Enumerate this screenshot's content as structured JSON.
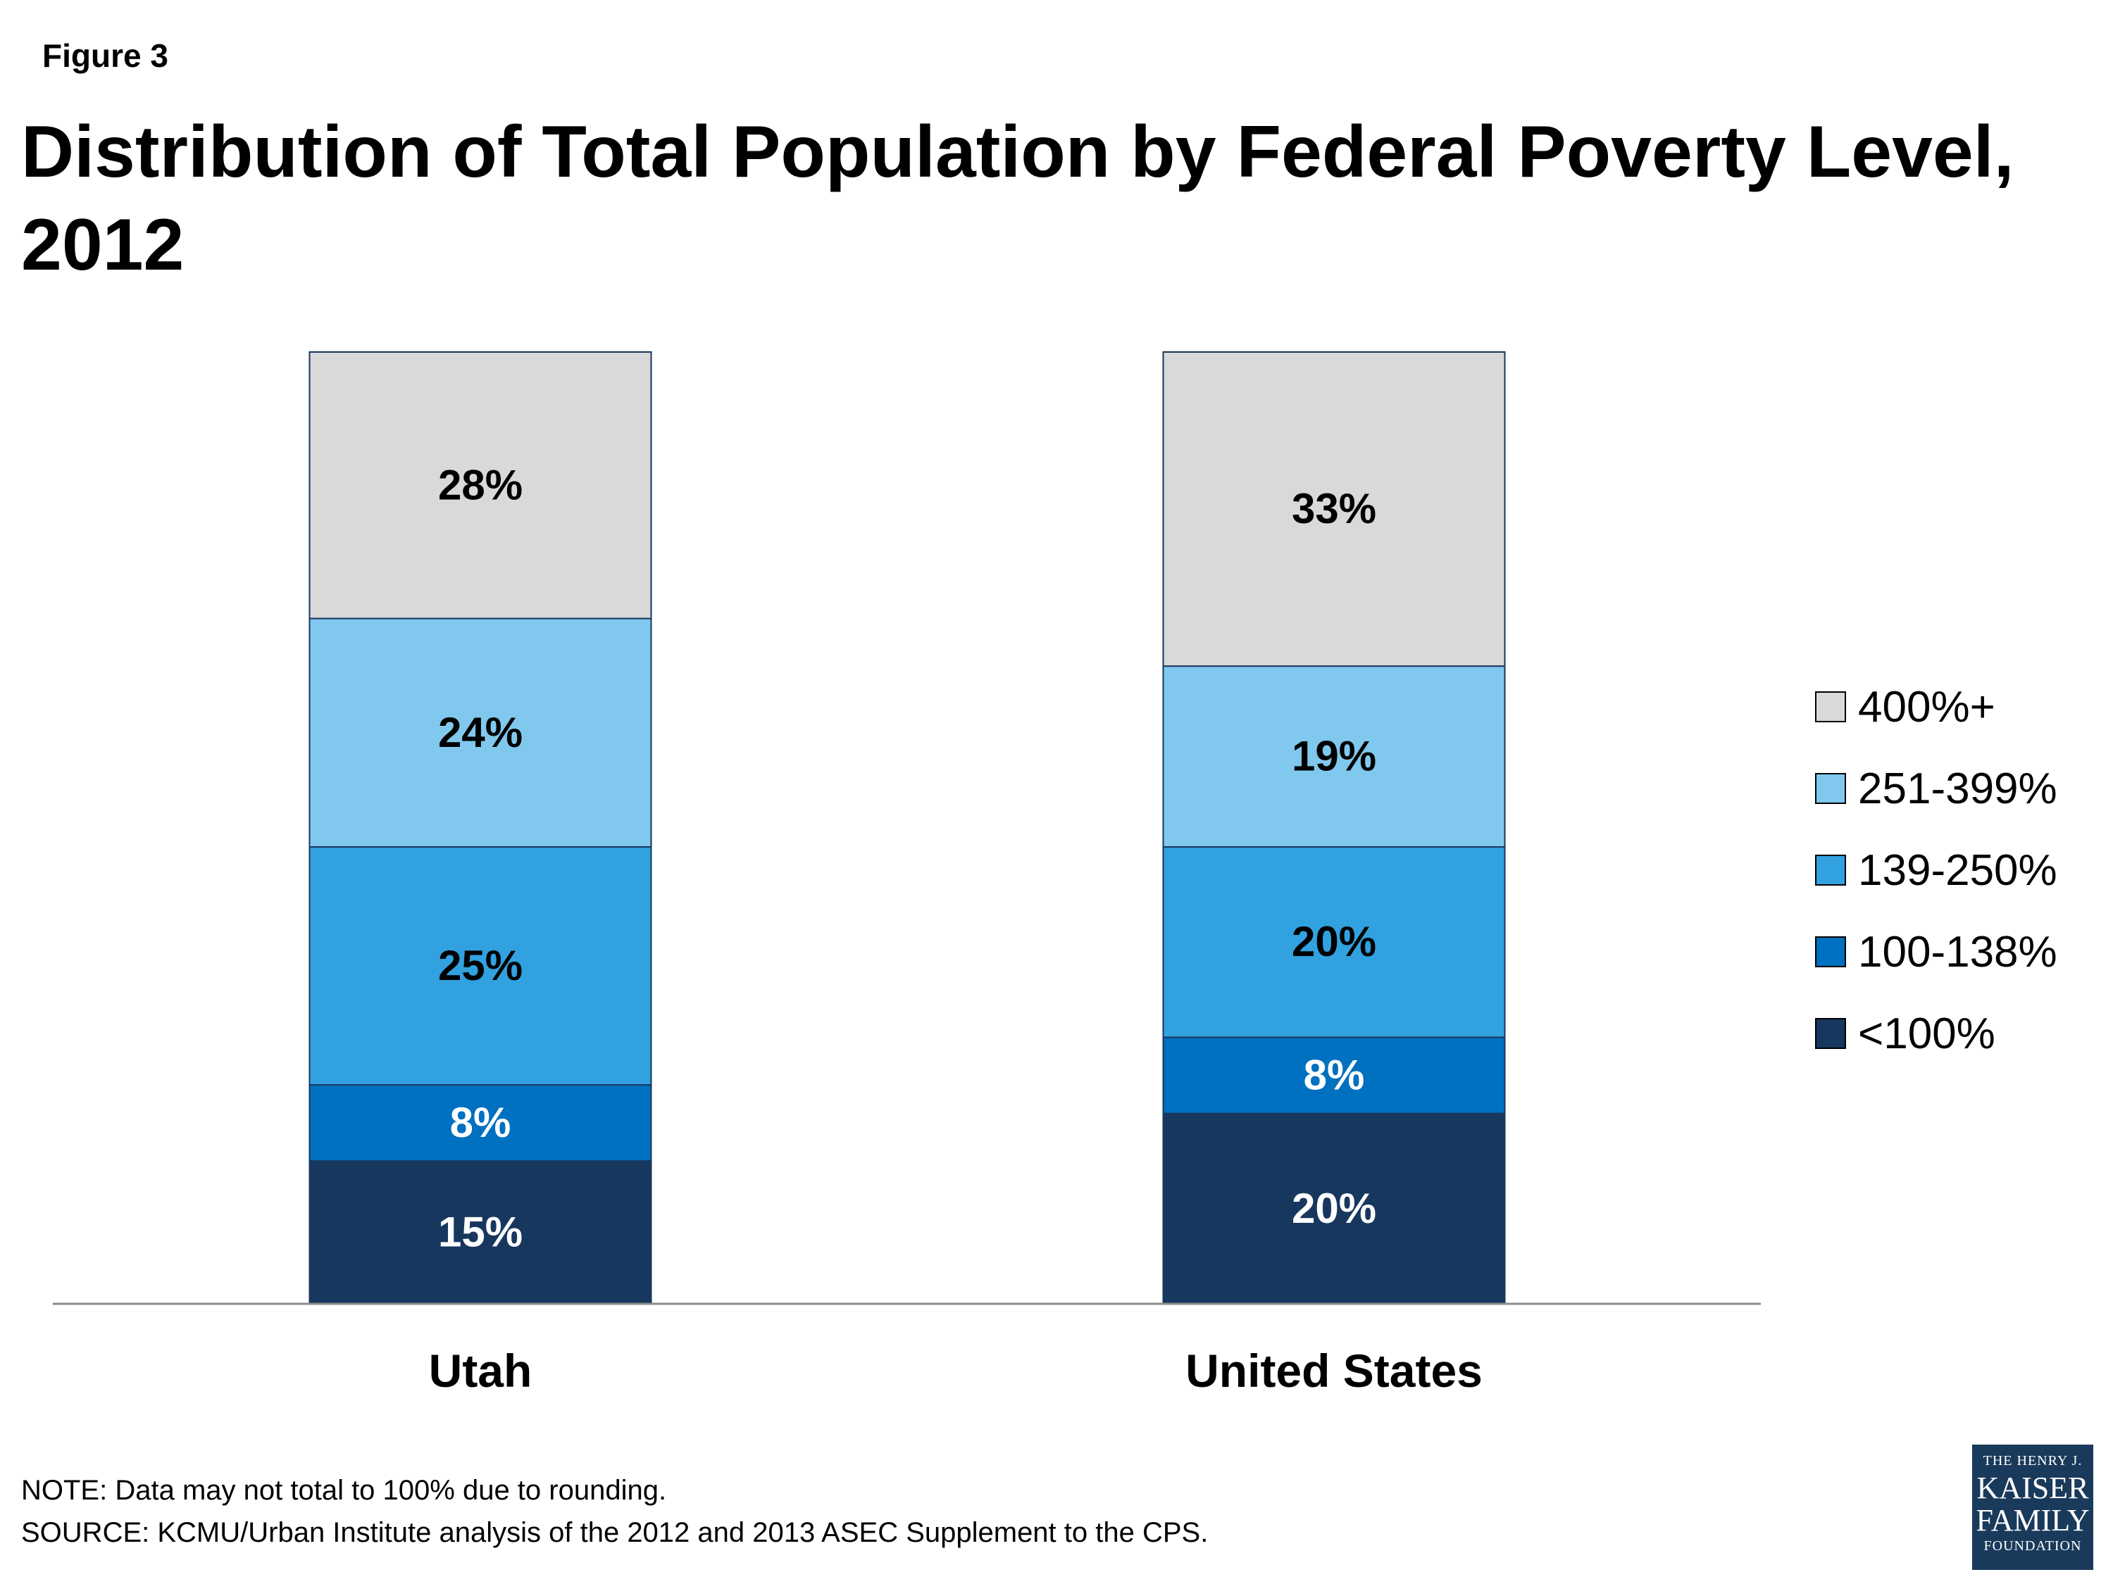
{
  "figure_label": "Figure 3",
  "title": "Distribution of Total Population by Federal Poverty Level, 2012",
  "note": "NOTE: Data may not total to 100% due to rounding.",
  "source": "SOURCE: KCMU/Urban Institute analysis of the 2012 and 2013 ASEC Supplement to the CPS.",
  "logo": {
    "line1": "THE HENRY J.",
    "line2": "KAISER",
    "line3": "FAMILY",
    "line4": "FOUNDATION"
  },
  "chart_data": {
    "type": "bar",
    "stacked": true,
    "categories": [
      "Utah",
      "United States"
    ],
    "series": [
      {
        "name": "<100%",
        "values": [
          15,
          20
        ],
        "color": "#17375e",
        "label_color": "#ffffff"
      },
      {
        "name": "100-138%",
        "values": [
          8,
          8
        ],
        "color": "#0070c0",
        "label_color": "#ffffff"
      },
      {
        "name": "139-250%",
        "values": [
          25,
          20
        ],
        "color": "#31a1e0",
        "label_color": "#000000"
      },
      {
        "name": "251-399%",
        "values": [
          24,
          19
        ],
        "color": "#80c8ee",
        "label_color": "#000000"
      },
      {
        "name": "400%+",
        "values": [
          28,
          33
        ],
        "color": "#d9d9d9",
        "label_color": "#000000"
      }
    ],
    "data_labels": [
      [
        "15%",
        "20%"
      ],
      [
        "8%",
        "8%"
      ],
      [
        "25%",
        "20%"
      ],
      [
        "24%",
        "19%"
      ],
      [
        "28%",
        "33%"
      ]
    ],
    "legend_position": "right",
    "ylim": [
      0,
      100
    ],
    "grid": false
  }
}
